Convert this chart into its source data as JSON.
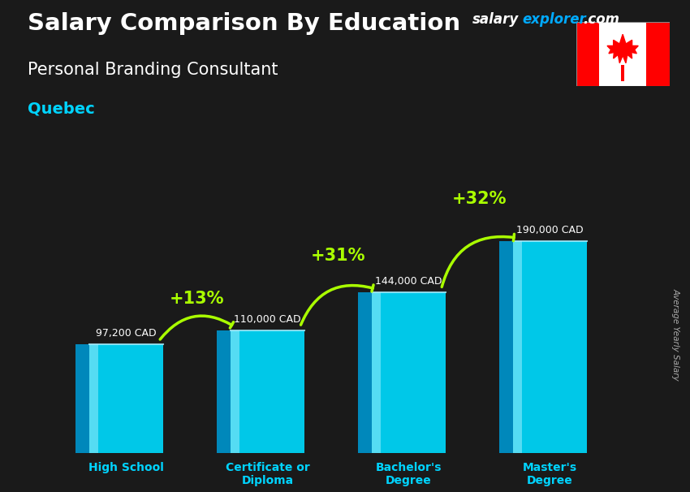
{
  "title": "Salary Comparison By Education",
  "subtitle": "Personal Branding Consultant",
  "location": "Quebec",
  "ylabel": "Average Yearly Salary",
  "categories": [
    "High School",
    "Certificate or\nDiploma",
    "Bachelor's\nDegree",
    "Master's\nDegree"
  ],
  "values": [
    97200,
    110000,
    144000,
    190000
  ],
  "value_labels": [
    "97,200 CAD",
    "110,000 CAD",
    "144,000 CAD",
    "190,000 CAD"
  ],
  "pct_labels": [
    "+13%",
    "+31%",
    "+32%"
  ],
  "bar_front_color": "#00c8e8",
  "bar_left_color": "#0088bb",
  "bar_top_color": "#55e0ff",
  "bar_highlight_color": "#aaf0ff",
  "bg_color": "#1a1a1a",
  "title_color": "#ffffff",
  "subtitle_color": "#ffffff",
  "location_color": "#00d4ff",
  "value_label_color": "#ffffff",
  "pct_color": "#aaff00",
  "arrow_color": "#aaff00",
  "xlabel_color": "#00d4ff",
  "ylabel_color": "#aaaaaa",
  "watermark_salary_color": "#ffffff",
  "watermark_explorer_color": "#00aaff",
  "watermark_com_color": "#ffffff",
  "ylim": [
    0,
    230000
  ],
  "bar_width": 0.52,
  "bar_depth": 0.1
}
